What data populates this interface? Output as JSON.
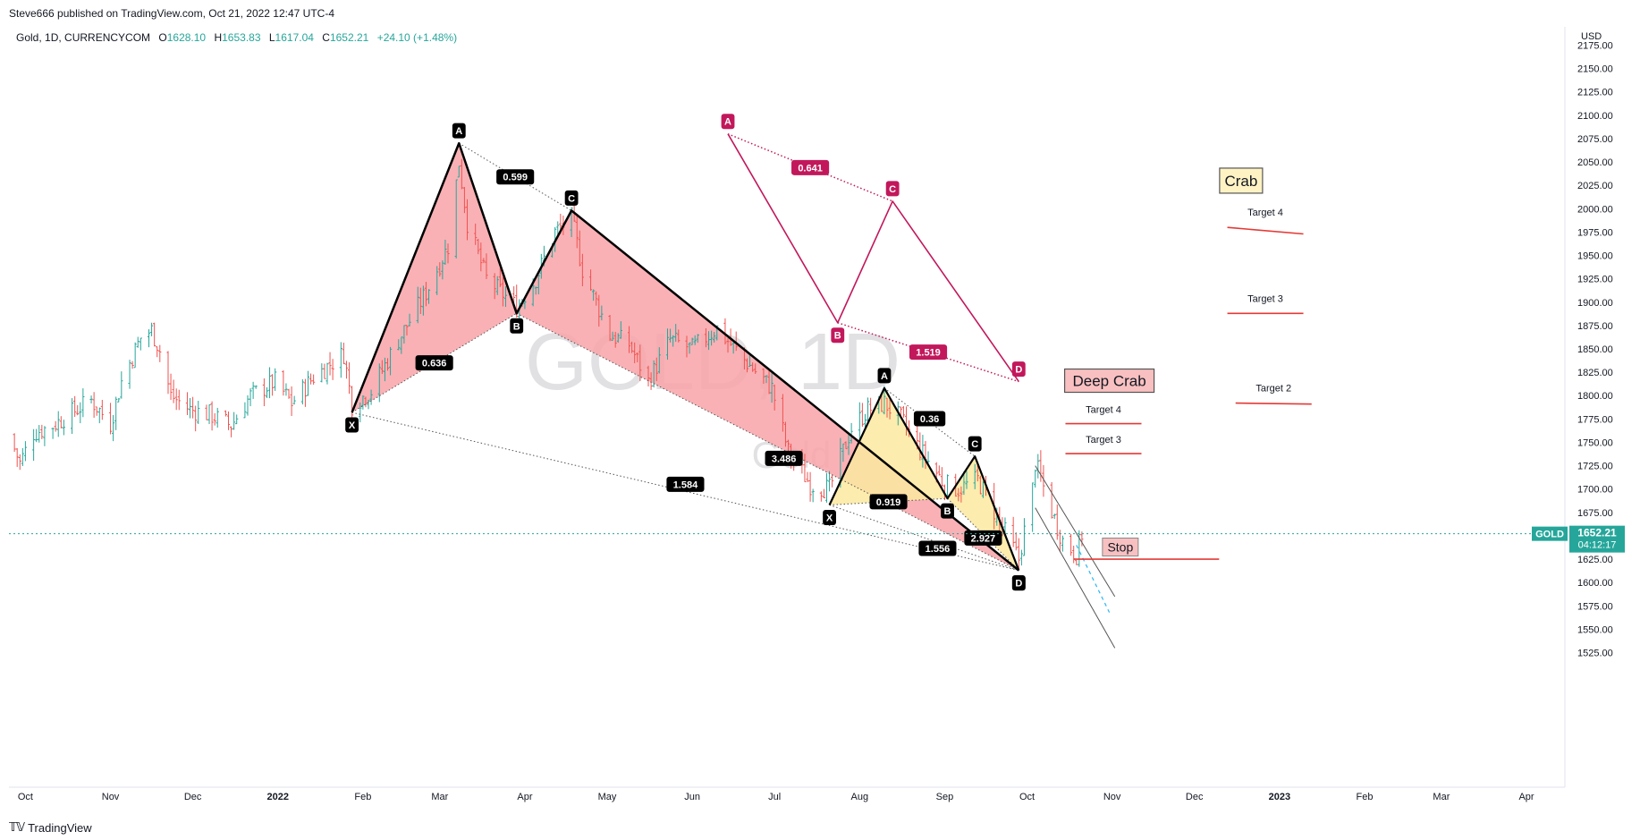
{
  "publisher": "Steve666 published on TradingView.com, Oct 21, 2022 12:47 UTC-4",
  "footer_logo": "TradingView",
  "legend": {
    "symbol": "Gold, 1D, CURRENCYCOM",
    "open_label": "O",
    "open": "1628.10",
    "high_label": "H",
    "high": "1653.83",
    "low_label": "L",
    "low": "1617.04",
    "close_label": "C",
    "close": "1652.21",
    "change": "+24.10 (+1.48%)"
  },
  "watermark": {
    "main": "GOLD, 1D",
    "sub": "Gold"
  },
  "price_tag": {
    "symbol": "GOLD",
    "price": "1652.21",
    "countdown": "04:12:17"
  },
  "colors": {
    "up": "#26a69a",
    "down": "#ef5350",
    "magenta": "#c2185b",
    "pattern_pink": "#f8a3a8",
    "pattern_yellow": "#fbe9a0"
  },
  "chart_data": {
    "type": "candlestick",
    "currency": "USD",
    "y_range": [
      1515,
      2185
    ],
    "yticks": [
      1525,
      1550,
      1575,
      1600,
      1625,
      1650,
      1675,
      1700,
      1725,
      1750,
      1775,
      1800,
      1825,
      1850,
      1875,
      1900,
      1925,
      1950,
      1975,
      2000,
      2025,
      2050,
      2075,
      2100,
      2125,
      2150,
      2175
    ],
    "x_range": [
      "2021-09-25",
      "2023-04-15"
    ],
    "xticks": [
      {
        "label": "Oct",
        "date": "2021-10-01"
      },
      {
        "label": "Nov",
        "date": "2021-11-01"
      },
      {
        "label": "Dec",
        "date": "2021-12-01"
      },
      {
        "label": "2022",
        "date": "2022-01-01"
      },
      {
        "label": "Feb",
        "date": "2022-02-01"
      },
      {
        "label": "Mar",
        "date": "2022-03-01"
      },
      {
        "label": "Apr",
        "date": "2022-04-01"
      },
      {
        "label": "May",
        "date": "2022-05-01"
      },
      {
        "label": "Jun",
        "date": "2022-06-01"
      },
      {
        "label": "Jul",
        "date": "2022-07-01"
      },
      {
        "label": "Aug",
        "date": "2022-08-01"
      },
      {
        "label": "Sep",
        "date": "2022-09-01"
      },
      {
        "label": "Oct",
        "date": "2022-10-01"
      },
      {
        "label": "Nov",
        "date": "2022-11-01"
      },
      {
        "label": "Dec",
        "date": "2022-12-01"
      },
      {
        "label": "2023",
        "date": "2023-01-01"
      },
      {
        "label": "Feb",
        "date": "2023-02-01"
      },
      {
        "label": "Mar",
        "date": "2023-03-01"
      },
      {
        "label": "Apr",
        "date": "2023-04-01"
      }
    ],
    "price_path": [
      [
        "2021-09-25",
        1758
      ],
      [
        "2021-09-29",
        1728
      ],
      [
        "2021-10-04",
        1760
      ],
      [
        "2021-10-11",
        1768
      ],
      [
        "2021-10-18",
        1782
      ],
      [
        "2021-10-25",
        1795
      ],
      [
        "2021-11-01",
        1770
      ],
      [
        "2021-11-05",
        1815
      ],
      [
        "2021-11-12",
        1862
      ],
      [
        "2021-11-16",
        1870
      ],
      [
        "2021-11-19",
        1848
      ],
      [
        "2021-11-23",
        1800
      ],
      [
        "2021-11-30",
        1785
      ],
      [
        "2021-12-07",
        1780
      ],
      [
        "2021-12-15",
        1768
      ],
      [
        "2021-12-22",
        1800
      ],
      [
        "2021-12-31",
        1815
      ],
      [
        "2022-01-06",
        1792
      ],
      [
        "2022-01-14",
        1820
      ],
      [
        "2022-01-25",
        1845
      ],
      [
        "2022-01-28",
        1790
      ],
      [
        "2022-02-04",
        1805
      ],
      [
        "2022-02-14",
        1860
      ],
      [
        "2022-02-24",
        1910
      ],
      [
        "2022-03-04",
        1960
      ],
      [
        "2022-03-08",
        2050
      ],
      [
        "2022-03-11",
        1985
      ],
      [
        "2022-03-18",
        1925
      ],
      [
        "2022-03-29",
        1895
      ],
      [
        "2022-04-05",
        1925
      ],
      [
        "2022-04-12",
        1975
      ],
      [
        "2022-04-18",
        1990
      ],
      [
        "2022-04-22",
        1935
      ],
      [
        "2022-05-02",
        1865
      ],
      [
        "2022-05-09",
        1855
      ],
      [
        "2022-05-16",
        1815
      ],
      [
        "2022-05-24",
        1860
      ],
      [
        "2022-06-01",
        1850
      ],
      [
        "2022-06-10",
        1872
      ],
      [
        "2022-06-20",
        1838
      ],
      [
        "2022-06-30",
        1808
      ],
      [
        "2022-07-06",
        1740
      ],
      [
        "2022-07-14",
        1705
      ],
      [
        "2022-07-21",
        1700
      ],
      [
        "2022-07-29",
        1765
      ],
      [
        "2022-08-04",
        1785
      ],
      [
        "2022-08-10",
        1792
      ],
      [
        "2022-08-16",
        1775
      ],
      [
        "2022-08-23",
        1742
      ],
      [
        "2022-09-01",
        1705
      ],
      [
        "2022-09-06",
        1700
      ],
      [
        "2022-09-13",
        1710
      ],
      [
        "2022-09-21",
        1665
      ],
      [
        "2022-09-28",
        1625
      ],
      [
        "2022-10-03",
        1700
      ],
      [
        "2022-10-04",
        1728
      ],
      [
        "2022-10-11",
        1668
      ],
      [
        "2022-10-14",
        1645
      ],
      [
        "2022-10-19",
        1630
      ],
      [
        "2022-10-21",
        1652
      ]
    ],
    "patterns": [
      {
        "name": "first-harmonic",
        "points": [
          {
            "label": "X",
            "date": "2022-01-28",
            "price": 1782
          },
          {
            "label": "A",
            "date": "2022-03-08",
            "price": 2070
          },
          {
            "label": "B",
            "date": "2022-03-29",
            "price": 1888
          },
          {
            "label": "C",
            "date": "2022-04-18",
            "price": 1998
          },
          {
            "label": "D",
            "date": "2022-09-28",
            "price": 1613
          }
        ],
        "ratios": [
          "0.599",
          "0.636",
          "3.486",
          "1.584"
        ]
      },
      {
        "name": "second-harmonic",
        "points": [
          {
            "label": "X",
            "date": "2022-07-21",
            "price": 1683
          },
          {
            "label": "A",
            "date": "2022-08-10",
            "price": 1808
          },
          {
            "label": "B",
            "date": "2022-09-02",
            "price": 1690
          },
          {
            "label": "C",
            "date": "2022-09-12",
            "price": 1735
          },
          {
            "label": "D",
            "date": "2022-09-28",
            "price": 1613
          }
        ],
        "ratios": [
          "0.36",
          "0.919",
          "2.927",
          "1.556"
        ]
      },
      {
        "name": "projected-pattern",
        "points": [
          {
            "label": "A",
            "date": "2022-06-14",
            "price": 2080
          },
          {
            "label": "B",
            "date": "2022-07-24",
            "price": 1878
          },
          {
            "label": "C",
            "date": "2022-08-13",
            "price": 2008
          },
          {
            "label": "D",
            "date": "2022-09-28",
            "price": 1815
          }
        ],
        "ratios": [
          "0.641",
          "1.519"
        ]
      }
    ],
    "annotations": {
      "crab": "Crab",
      "deep_crab": "Deep Crab",
      "stop": "Stop",
      "crab_targets": [
        "Target 4",
        "Target 3",
        "Target 2"
      ],
      "deep_crab_targets": [
        "Target 4",
        "Target 3"
      ]
    }
  }
}
